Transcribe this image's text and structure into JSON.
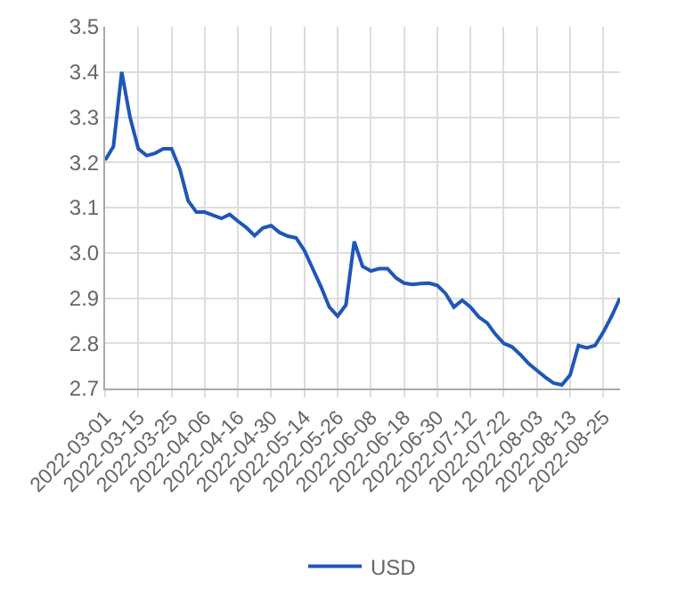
{
  "chart_data": {
    "type": "line",
    "categories": [
      "2022-03-01",
      null,
      null,
      null,
      "2022-03-15",
      null,
      null,
      null,
      "2022-03-25",
      null,
      null,
      null,
      "2022-04-06",
      null,
      null,
      null,
      "2022-04-16",
      null,
      null,
      null,
      "2022-04-30",
      null,
      null,
      null,
      "2022-05-14",
      null,
      null,
      null,
      "2022-05-26",
      null,
      null,
      null,
      "2022-06-08",
      null,
      null,
      null,
      "2022-06-18",
      null,
      null,
      null,
      "2022-06-30",
      null,
      null,
      null,
      "2022-07-12",
      null,
      null,
      null,
      "2022-07-22",
      null,
      null,
      null,
      "2022-08-03",
      null,
      null,
      null,
      "2022-08-13",
      null,
      null,
      null,
      "2022-08-25",
      null,
      null
    ],
    "series": [
      {
        "name": "USD",
        "color": "#1f56b8",
        "values": [
          3.205,
          3.235,
          3.4,
          3.3,
          3.23,
          3.215,
          3.22,
          3.23,
          3.23,
          3.185,
          3.115,
          3.09,
          3.09,
          3.083,
          3.076,
          3.085,
          3.07,
          3.056,
          3.038,
          3.055,
          3.06,
          3.045,
          3.037,
          3.033,
          3.005,
          2.965,
          2.925,
          2.88,
          2.86,
          2.885,
          3.025,
          2.97,
          2.96,
          2.965,
          2.965,
          2.945,
          2.933,
          2.93,
          2.932,
          2.933,
          2.928,
          2.91,
          2.88,
          2.895,
          2.88,
          2.858,
          2.845,
          2.82,
          2.8,
          2.792,
          2.775,
          2.755,
          2.74,
          2.725,
          2.712,
          2.708,
          2.73,
          2.795,
          2.79,
          2.795,
          2.825,
          2.86,
          2.9
        ]
      }
    ],
    "ylim": [
      2.7,
      3.5
    ],
    "yticks": [
      2.7,
      2.8,
      2.9,
      {
        "value": 3,
        "label": "3.0"
      },
      3.1,
      3.2,
      3.3,
      3.4,
      3.5
    ],
    "grid": true,
    "legend": "bottom",
    "marker": "none",
    "line_style": "solid"
  }
}
